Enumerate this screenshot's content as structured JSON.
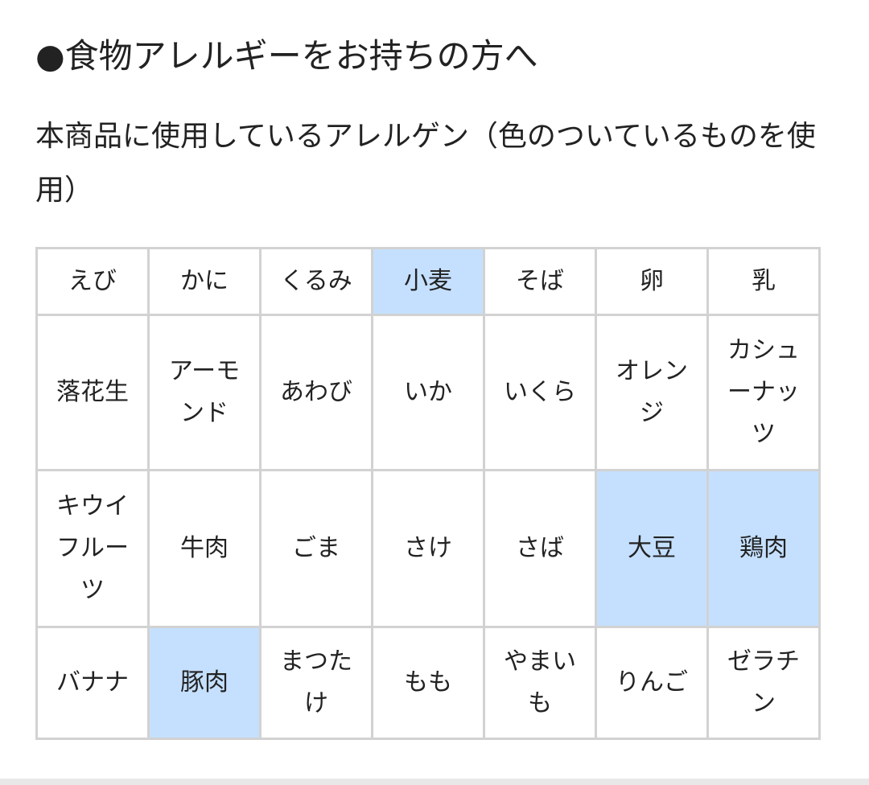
{
  "title": "●食物アレルギーをお持ちの方へ",
  "subtitle": "本商品に使用しているアレルゲン（色のついているものを使用）",
  "highlight_color": "#c5e0ff",
  "rows": [
    [
      {
        "name": "えび",
        "used": false
      },
      {
        "name": "かに",
        "used": false
      },
      {
        "name": "くるみ",
        "used": false
      },
      {
        "name": "小麦",
        "used": true
      },
      {
        "name": "そば",
        "used": false
      },
      {
        "name": "卵",
        "used": false
      },
      {
        "name": "乳",
        "used": false
      }
    ],
    [
      {
        "name": "落花生",
        "used": false
      },
      {
        "name": "アーモンド",
        "used": false
      },
      {
        "name": "あわび",
        "used": false
      },
      {
        "name": "いか",
        "used": false
      },
      {
        "name": "いくら",
        "used": false
      },
      {
        "name": "オレンジ",
        "used": false
      },
      {
        "name": "カシューナッツ",
        "used": false
      }
    ],
    [
      {
        "name": "キウイフルーツ",
        "used": false
      },
      {
        "name": "牛肉",
        "used": false
      },
      {
        "name": "ごま",
        "used": false
      },
      {
        "name": "さけ",
        "used": false
      },
      {
        "name": "さば",
        "used": false
      },
      {
        "name": "大豆",
        "used": true
      },
      {
        "name": "鶏肉",
        "used": true
      }
    ],
    [
      {
        "name": "バナナ",
        "used": false
      },
      {
        "name": "豚肉",
        "used": true
      },
      {
        "name": "まつたけ",
        "used": false
      },
      {
        "name": "もも",
        "used": false
      },
      {
        "name": "やまいも",
        "used": false
      },
      {
        "name": "りんご",
        "used": false
      },
      {
        "name": "ゼラチン",
        "used": false
      }
    ]
  ]
}
